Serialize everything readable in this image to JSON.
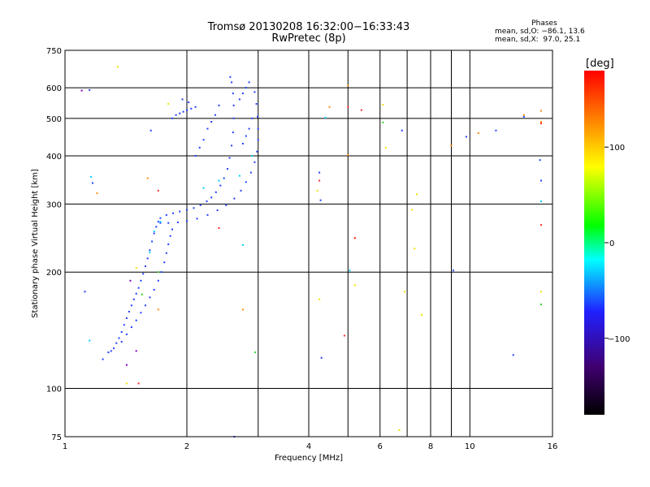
{
  "chart_data": {
    "type": "scatter",
    "title": "Tromsø 20130208 16:32:00−16:33:43",
    "subtitle": "RwPretec (8p)",
    "xlabel": "Frequency [MHz]",
    "ylabel": "Stationary phase Virtual Height [km]",
    "x_scale": "log",
    "y_scale": "log",
    "xlim": [
      1,
      16
    ],
    "ylim": [
      75,
      750
    ],
    "x_ticks": [
      1,
      2,
      4,
      6,
      8,
      10,
      16
    ],
    "x_grid": [
      2,
      3,
      4,
      5,
      6,
      7,
      8,
      9,
      10
    ],
    "y_ticks": [
      75,
      100,
      200,
      300,
      400,
      500,
      600,
      750
    ],
    "y_grid": [
      100,
      200,
      300,
      400,
      500,
      600
    ],
    "grid": true,
    "phases_box": {
      "heading": "Phases",
      "line_o": "mean, sd,O: −86.1, 13.6",
      "line_x": "mean, sd,X:  97.0, 25.1"
    },
    "colorbar": {
      "label": "[deg]",
      "range": [
        -180,
        180
      ],
      "ticks": [
        100,
        0,
        -100
      ],
      "colors": [
        "#000000",
        "#400070",
        "#2020ff",
        "#00ffff",
        "#00ff00",
        "#ffff00",
        "#ff8000",
        "#ff0000"
      ]
    },
    "series": [
      {
        "color": "#1f3fff",
        "points": [
          [
            1.28,
            124
          ],
          [
            1.3,
            125
          ],
          [
            1.32,
            127
          ],
          [
            1.34,
            131
          ],
          [
            1.36,
            135
          ],
          [
            1.38,
            140
          ],
          [
            1.4,
            146
          ],
          [
            1.42,
            152
          ],
          [
            1.44,
            158
          ],
          [
            1.46,
            164
          ],
          [
            1.48,
            170
          ],
          [
            1.5,
            176
          ],
          [
            1.52,
            182
          ],
          [
            1.54,
            190
          ],
          [
            1.56,
            198
          ],
          [
            1.58,
            207
          ],
          [
            1.6,
            217
          ],
          [
            1.62,
            228
          ],
          [
            1.64,
            240
          ],
          [
            1.66,
            252
          ],
          [
            1.68,
            262
          ],
          [
            1.7,
            270
          ],
          [
            1.72,
            276
          ],
          [
            1.78,
            281
          ],
          [
            1.85,
            284
          ],
          [
            1.92,
            287
          ],
          [
            2.0,
            290
          ],
          [
            2.08,
            293
          ],
          [
            2.16,
            298
          ],
          [
            2.24,
            305
          ],
          [
            2.3,
            312
          ],
          [
            2.36,
            322
          ],
          [
            2.42,
            335
          ],
          [
            2.47,
            350
          ],
          [
            2.52,
            370
          ],
          [
            2.55,
            395
          ],
          [
            2.58,
            425
          ],
          [
            2.6,
            460
          ],
          [
            2.61,
            500
          ],
          [
            2.61,
            540
          ],
          [
            2.6,
            580
          ],
          [
            2.58,
            620
          ],
          [
            2.56,
            640
          ],
          [
            1.72,
            268
          ],
          [
            1.8,
            268
          ],
          [
            1.9,
            269
          ],
          [
            2.0,
            271
          ],
          [
            2.12,
            275
          ],
          [
            2.25,
            281
          ],
          [
            2.38,
            289
          ],
          [
            2.5,
            298
          ],
          [
            2.62,
            310
          ],
          [
            2.72,
            325
          ],
          [
            2.8,
            342
          ],
          [
            2.88,
            362
          ],
          [
            2.94,
            385
          ],
          [
            2.98,
            410
          ],
          [
            3.0,
            440
          ],
          [
            3.0,
            470
          ],
          [
            2.99,
            505
          ],
          [
            2.97,
            545
          ],
          [
            2.94,
            585
          ],
          [
            1.38,
            132
          ],
          [
            1.42,
            138
          ],
          [
            1.46,
            144
          ],
          [
            1.5,
            150
          ],
          [
            1.54,
            157
          ],
          [
            1.58,
            164
          ],
          [
            1.62,
            172
          ],
          [
            1.66,
            180
          ],
          [
            1.7,
            190
          ],
          [
            1.73,
            200
          ],
          [
            1.76,
            212
          ],
          [
            1.78,
            224
          ],
          [
            1.8,
            236
          ],
          [
            1.82,
            248
          ],
          [
            1.84,
            258
          ],
          [
            1.84,
            500
          ],
          [
            1.88,
            510
          ],
          [
            1.92,
            515
          ],
          [
            1.96,
            520
          ],
          [
            2.0,
            525
          ],
          [
            2.05,
            530
          ],
          [
            2.1,
            535
          ],
          [
            1.95,
            560
          ],
          [
            2.02,
            550
          ],
          [
            2.1,
            400
          ],
          [
            2.15,
            420
          ],
          [
            2.2,
            440
          ],
          [
            2.25,
            470
          ],
          [
            2.3,
            490
          ],
          [
            2.35,
            510
          ],
          [
            2.4,
            540
          ],
          [
            2.8,
            600
          ],
          [
            2.85,
            620
          ],
          [
            2.7,
            560
          ],
          [
            2.75,
            580
          ],
          [
            2.9,
            500
          ],
          [
            2.85,
            470
          ],
          [
            2.8,
            450
          ],
          [
            2.75,
            430
          ],
          [
            1.15,
            592
          ],
          [
            1.17,
            340
          ],
          [
            1.12,
            178
          ],
          [
            1.24,
            119
          ],
          [
            1.63,
            465
          ],
          [
            2.62,
            75
          ],
          [
            4.3,
            120
          ],
          [
            12.8,
            122
          ],
          [
            9.1,
            202
          ],
          [
            6.8,
            465
          ],
          [
            13.6,
            505
          ],
          [
            9.8,
            448
          ],
          [
            11.6,
            465
          ],
          [
            4.25,
            362
          ],
          [
            4.28,
            307
          ],
          [
            14.9,
            390
          ],
          [
            15.0,
            345
          ]
        ]
      },
      {
        "color": "#00d0ff",
        "points": [
          [
            1.62,
            225
          ],
          [
            1.66,
            255
          ],
          [
            1.72,
            270
          ],
          [
            2.2,
            330
          ],
          [
            2.4,
            345
          ],
          [
            2.7,
            355
          ],
          [
            2.9,
            400
          ],
          [
            1.16,
            353
          ],
          [
            1.15,
            133
          ],
          [
            2.75,
            235
          ],
          [
            5.05,
            202
          ],
          [
            15.0,
            305
          ],
          [
            4.4,
            502
          ]
        ]
      },
      {
        "color": "#30d030",
        "points": [
          [
            1.55,
            175
          ],
          [
            1.7,
            200
          ],
          [
            2.95,
            124
          ],
          [
            15.0,
            165
          ],
          [
            6.1,
            488
          ]
        ]
      },
      {
        "color": "#f0e000",
        "points": [
          [
            1.35,
            680
          ],
          [
            1.8,
            545
          ],
          [
            1.5,
            205
          ],
          [
            1.42,
            103
          ],
          [
            5.2,
            185
          ],
          [
            7.3,
            230
          ],
          [
            6.9,
            178
          ],
          [
            4.2,
            325
          ],
          [
            4.25,
            170
          ],
          [
            6.1,
            542
          ],
          [
            7.4,
            318
          ],
          [
            6.2,
            420
          ],
          [
            6.7,
            78
          ],
          [
            7.6,
            155
          ],
          [
            7.2,
            290
          ],
          [
            15.0,
            178
          ]
        ]
      },
      {
        "color": "#ff8c00",
        "points": [
          [
            1.6,
            350
          ],
          [
            1.7,
            160
          ],
          [
            1.2,
            320
          ],
          [
            2.75,
            160
          ],
          [
            5.0,
            608
          ],
          [
            10.5,
            458
          ],
          [
            15.0,
            523
          ],
          [
            4.5,
            535
          ],
          [
            5.0,
            402
          ],
          [
            5.2,
            245
          ],
          [
            9.0,
            425
          ],
          [
            13.6,
            510
          ],
          [
            15.0,
            490
          ]
        ]
      },
      {
        "color": "#ff2a2a",
        "points": [
          [
            1.52,
            103
          ],
          [
            2.4,
            260
          ],
          [
            4.25,
            345
          ],
          [
            4.9,
            137
          ],
          [
            5.0,
            535
          ],
          [
            5.4,
            525
          ],
          [
            5.2,
            245
          ],
          [
            15.0,
            265
          ],
          [
            15.0,
            485
          ],
          [
            1.7,
            325
          ]
        ]
      },
      {
        "color": "#7a00c0",
        "points": [
          [
            1.45,
            190
          ],
          [
            1.5,
            125
          ],
          [
            1.42,
            115
          ],
          [
            1.1,
            590
          ]
        ]
      }
    ]
  }
}
